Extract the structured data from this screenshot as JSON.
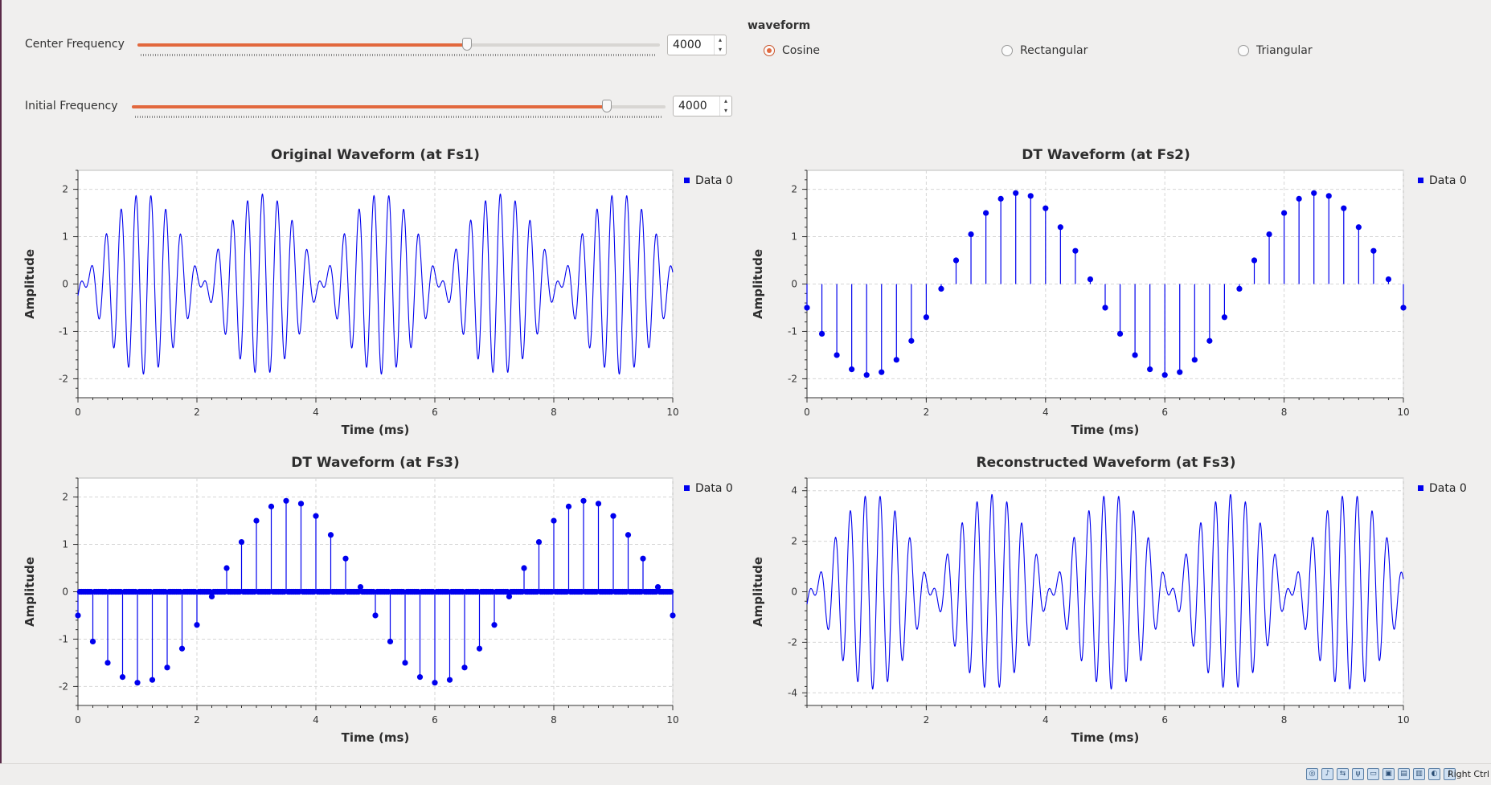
{
  "controls": {
    "center_frequency": {
      "label": "Center Frequency",
      "value": "4000",
      "position": 0.63
    },
    "initial_frequency": {
      "label": "Initial Frequency",
      "value": "4000",
      "position": 0.89
    }
  },
  "waveform": {
    "title": "waveform",
    "options": [
      {
        "label": "Cosine",
        "selected": true
      },
      {
        "label": "Rectangular",
        "selected": false
      },
      {
        "label": "Triangular",
        "selected": false
      }
    ]
  },
  "plots": [
    {
      "title": "Original Waveform (at Fs1)",
      "legend": "Data 0",
      "xlabel": "Time (ms)",
      "ylabel": "Amplitude",
      "xticks": [
        "0",
        "2",
        "4",
        "6",
        "8",
        "10"
      ],
      "yticks": [
        "2",
        "1",
        "0",
        "-1",
        "-2"
      ]
    },
    {
      "title": "DT Waveform (at Fs2)",
      "legend": "Data 0",
      "xlabel": "Time (ms)",
      "ylabel": "Amplitude",
      "xticks": [
        "0",
        "2",
        "4",
        "6",
        "8",
        "10"
      ],
      "yticks": [
        "2",
        "1",
        "0",
        "-1",
        "-2"
      ]
    },
    {
      "title": "DT Waveform (at Fs3)",
      "legend": "Data 0",
      "xlabel": "Time (ms)",
      "ylabel": "Amplitude",
      "xticks": [
        "0",
        "2",
        "4",
        "6",
        "8",
        "10"
      ],
      "yticks": [
        "2",
        "1",
        "0",
        "-1",
        "-2"
      ]
    },
    {
      "title": "Reconstructed Waveform (at Fs3)",
      "legend": "Data 0",
      "xlabel": "Time (ms)",
      "ylabel": "Amplitude",
      "xticks": [
        "2",
        "4",
        "6",
        "8",
        "10"
      ],
      "yticks": [
        "4",
        "2",
        "0",
        "-2",
        "-4"
      ]
    }
  ],
  "chart_data": [
    {
      "type": "line",
      "title": "Original Waveform (at Fs1)",
      "xlabel": "Time (ms)",
      "ylabel": "Amplitude",
      "xlim": [
        0,
        10
      ],
      "ylim": [
        -2.4,
        2.4
      ],
      "grid": true,
      "legend": "top-right",
      "series_name": "Data 0",
      "color": "#0000ee",
      "envelope_period_ms": 4,
      "carrier_khz": 4,
      "peak_amplitude": 1.9
    },
    {
      "type": "stem",
      "title": "DT Waveform (at Fs2)",
      "xlabel": "Time (ms)",
      "ylabel": "Amplitude",
      "xlim": [
        0,
        10
      ],
      "ylim": [
        -2.4,
        2.4
      ],
      "grid": true,
      "legend": "top-right",
      "series_name": "Data 0",
      "color": "#0000ee",
      "x": [
        0,
        0.25,
        0.5,
        0.75,
        1,
        1.25,
        1.5,
        1.75,
        2,
        2.25,
        2.5,
        2.75,
        3,
        3.25,
        3.5,
        3.75,
        4,
        4.25,
        4.5,
        4.75,
        5,
        5.25,
        5.5,
        5.75,
        6,
        6.25,
        6.5,
        6.75,
        7,
        7.25,
        7.5,
        7.75,
        8,
        8.25,
        8.5,
        8.75,
        9,
        9.25,
        9.5,
        9.75,
        10
      ],
      "y": [
        -0.5,
        -1.05,
        -1.5,
        -1.8,
        -1.92,
        -1.86,
        -1.6,
        -1.2,
        -0.7,
        -0.1,
        0.5,
        1.05,
        1.5,
        1.8,
        1.92,
        1.86,
        1.6,
        1.2,
        0.7,
        0.1,
        -0.5,
        -1.05,
        -1.5,
        -1.8,
        -1.92,
        -1.86,
        -1.6,
        -1.2,
        -0.7,
        -0.1,
        0.5,
        1.05,
        1.5,
        1.8,
        1.92,
        1.86,
        1.6,
        1.2,
        0.7,
        0.1,
        -0.5
      ]
    },
    {
      "type": "stem",
      "title": "DT Waveform (at Fs3)",
      "xlabel": "Time (ms)",
      "ylabel": "Amplitude",
      "xlim": [
        0,
        10
      ],
      "ylim": [
        -2.4,
        2.4
      ],
      "grid": true,
      "legend": "top-right",
      "series_name": "Data 0",
      "color": "#0000ee",
      "x": [
        0,
        0.25,
        0.5,
        0.75,
        1,
        1.25,
        1.5,
        1.75,
        2,
        2.25,
        2.5,
        2.75,
        3,
        3.25,
        3.5,
        3.75,
        4,
        4.25,
        4.5,
        4.75,
        5,
        5.25,
        5.5,
        5.75,
        6,
        6.25,
        6.5,
        6.75,
        7,
        7.25,
        7.5,
        7.75,
        8,
        8.25,
        8.5,
        8.75,
        9,
        9.25,
        9.5,
        9.75,
        10
      ],
      "y": [
        -0.5,
        -1.05,
        -1.5,
        -1.8,
        -1.92,
        -1.86,
        -1.6,
        -1.2,
        -0.7,
        -0.1,
        0.5,
        1.05,
        1.5,
        1.8,
        1.92,
        1.86,
        1.6,
        1.2,
        0.7,
        0.1,
        -0.5,
        -1.05,
        -1.5,
        -1.8,
        -1.92,
        -1.86,
        -1.6,
        -1.2,
        -0.7,
        -0.1,
        0.5,
        1.05,
        1.5,
        1.8,
        1.92,
        1.86,
        1.6,
        1.2,
        0.7,
        0.1,
        -0.5
      ],
      "zero_samples_between": 7
    },
    {
      "type": "line",
      "title": "Reconstructed Waveform (at Fs3)",
      "xlabel": "Time (ms)",
      "ylabel": "Amplitude",
      "xlim": [
        0,
        10
      ],
      "ylim": [
        -4.5,
        4.5
      ],
      "grid": true,
      "legend": "top-right",
      "series_name": "Data 0",
      "color": "#0000ee",
      "envelope_period_ms": 4,
      "carrier_khz": 4,
      "peak_amplitude": 3.85
    }
  ],
  "taskbar": {
    "host_key": "Right Ctrl"
  }
}
